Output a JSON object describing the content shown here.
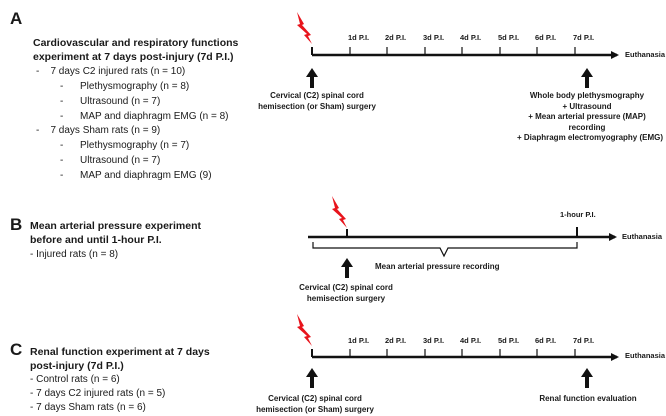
{
  "panel_a": {
    "letter": "A",
    "title_line1": "Cardiovascular and respiratory functions",
    "title_line2": "experiment at 7 days post-injury (7d P.I.)",
    "groups": [
      {
        "label": "7 days C2 injured rats (n = 10)",
        "subitems": [
          "Plethysmography (n = 8)",
          "Ultrasound (n = 7)",
          "MAP and diaphragm EMG (n = 8)"
        ]
      },
      {
        "label": "7 days Sham rats (n = 9)",
        "subitems": [
          "Plethysmography (n = 7)",
          "Ultrasound (n = 7)",
          "MAP and diaphragm EMG (9)"
        ]
      }
    ],
    "timeline_labels": [
      "1d P.I.",
      "2d P.I.",
      "3d P.I.",
      "4d P.I.",
      "5d P.I.",
      "6d P.I.",
      "7d P.I."
    ],
    "end_label": "Euthanasia",
    "surgery_line1": "Cervical (C2) spinal cord",
    "surgery_line2": "hemisection (or Sham) surgery",
    "measures": [
      "Whole body plethysmography",
      "+ Ultrasound",
      "+ Mean arterial pressure (MAP)",
      "recording",
      "+ Diaphragm electromyography (EMG)"
    ]
  },
  "panel_b": {
    "letter": "B",
    "title_line1": "Mean arterial pressure experiment",
    "title_line2": "before and until 1-hour P.I.",
    "item": "- Injured rats (n = 8)",
    "timeline_label": "1-hour P.I.",
    "end_label": "Euthanasia",
    "recording_label": "Mean arterial pressure recording",
    "surgery_line1": "Cervical (C2) spinal cord",
    "surgery_line2": "hemisection surgery"
  },
  "panel_c": {
    "letter": "C",
    "title_line1": "Renal function experiment at 7 days",
    "title_line2": "post-injury (7d P.I.)",
    "items": [
      "- Control rats (n = 6)",
      "- 7 days C2 injured rats (n = 5)",
      "- 7 days Sham rats (n =  6)"
    ],
    "timeline_labels": [
      "1d P.I.",
      "2d P.I.",
      "3d P.I.",
      "4d P.I.",
      "5d P.I.",
      "6d P.I.",
      "7d P.I."
    ],
    "end_label": "Euthanasia",
    "surgery_line1": "Cervical (C2) spinal cord",
    "surgery_line2": "hemisection (or Sham) surgery",
    "evaluation_label": "Renal function evaluation"
  },
  "colors": {
    "lightning": "#e8141c",
    "line": "#111111"
  },
  "icons": [
    "lightning-bolt-icon",
    "up-arrow-icon"
  ]
}
